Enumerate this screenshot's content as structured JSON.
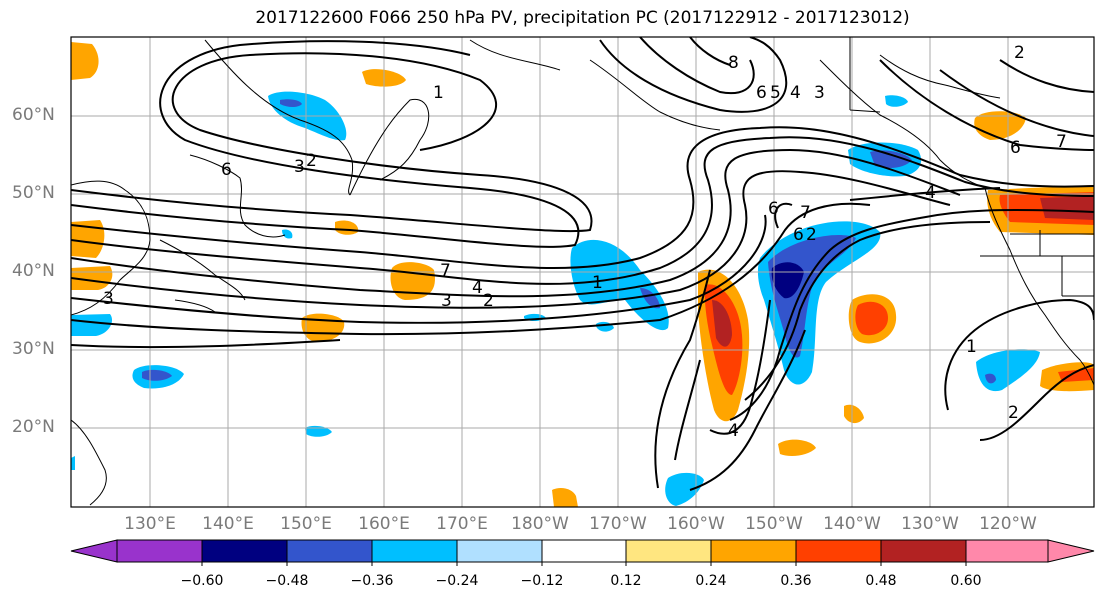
{
  "title": "2017122600 F066 250 hPa PV, precipitation PC (2017122912 - 2017123012)",
  "latitude_labels": [
    "60°N",
    "50°N",
    "40°N",
    "30°N",
    "20°N"
  ],
  "longitude_labels": [
    "130°E",
    "140°E",
    "150°E",
    "160°E",
    "170°E",
    "180°W",
    "170°W",
    "160°W",
    "150°W",
    "140°W",
    "130°W",
    "120°W"
  ],
  "contour_labels": [
    "1",
    "2",
    "3",
    "4",
    "6",
    "7",
    "8",
    "5"
  ],
  "colorbar": {
    "ticks": [
      "−0.60",
      "−0.48",
      "−0.36",
      "−0.24",
      "−0.12",
      "0.12",
      "0.24",
      "0.36",
      "0.48",
      "0.60"
    ],
    "colors": [
      "#9933cc",
      "#000080",
      "#3355cc",
      "#00bfff",
      "#b0e0ff",
      "#ffffff",
      "#ffe680",
      "#ffa500",
      "#ff4000",
      "#b22222",
      "#ff88aa"
    ]
  }
}
